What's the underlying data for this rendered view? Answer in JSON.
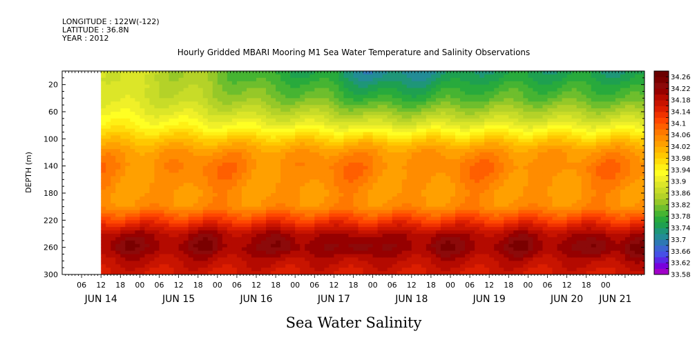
{
  "header": {
    "longitude": "LONGITUDE : 122W(-122)",
    "latitude": "LATITUDE : 36.8N",
    "year": "YEAR : 2012"
  },
  "chart_data": {
    "type": "heatmap",
    "title": "Hourly Gridded MBARI Mooring M1 Sea Water Temperature and Salinity Observations",
    "variable_label": "Sea Water Salinity",
    "xlabel": "",
    "ylabel": "DEPTH (m)",
    "x_range_hours": [
      0,
      180
    ],
    "x_range_note": "hours from JUN 14 00 to JUN 21 12",
    "data_start_hour": 12,
    "ylim": [
      0,
      300
    ],
    "y_inverted": true,
    "y_ticks": [
      20,
      60,
      100,
      140,
      180,
      220,
      260,
      300
    ],
    "x_hour_ticks": [
      {
        "h": 6,
        "label": "06"
      },
      {
        "h": 12,
        "label": "12"
      },
      {
        "h": 18,
        "label": "18"
      },
      {
        "h": 24,
        "label": "00"
      },
      {
        "h": 30,
        "label": "06"
      },
      {
        "h": 36,
        "label": "12"
      },
      {
        "h": 42,
        "label": "18"
      },
      {
        "h": 48,
        "label": "00"
      },
      {
        "h": 54,
        "label": "06"
      },
      {
        "h": 60,
        "label": "12"
      },
      {
        "h": 66,
        "label": "18"
      },
      {
        "h": 72,
        "label": "00"
      },
      {
        "h": 78,
        "label": "06"
      },
      {
        "h": 84,
        "label": "12"
      },
      {
        "h": 90,
        "label": "18"
      },
      {
        "h": 96,
        "label": "00"
      },
      {
        "h": 102,
        "label": "06"
      },
      {
        "h": 108,
        "label": "12"
      },
      {
        "h": 114,
        "label": "18"
      },
      {
        "h": 120,
        "label": "00"
      },
      {
        "h": 126,
        "label": "06"
      },
      {
        "h": 132,
        "label": "12"
      },
      {
        "h": 138,
        "label": "18"
      },
      {
        "h": 144,
        "label": "00"
      },
      {
        "h": 150,
        "label": "06"
      },
      {
        "h": 156,
        "label": "12"
      },
      {
        "h": 162,
        "label": "18"
      },
      {
        "h": 168,
        "label": "00"
      }
    ],
    "x_day_labels": [
      {
        "h": 12,
        "label": "JUN 14"
      },
      {
        "h": 36,
        "label": "JUN 15"
      },
      {
        "h": 60,
        "label": "JUN 16"
      },
      {
        "h": 84,
        "label": "JUN 17"
      },
      {
        "h": 108,
        "label": "JUN 18"
      },
      {
        "h": 132,
        "label": "JUN 19"
      },
      {
        "h": 156,
        "label": "JUN 20"
      },
      {
        "h": 171,
        "label": "JUN 21"
      }
    ],
    "colorbar": {
      "min": 33.58,
      "max": 34.28,
      "step": 0.02,
      "tick_labels": [
        "34.26",
        "34.22",
        "34.18",
        "34.14",
        "34.1",
        "34.06",
        "34.02",
        "33.98",
        "33.94",
        "33.9",
        "33.86",
        "33.82",
        "33.78",
        "33.74",
        "33.7",
        "33.66",
        "33.62",
        "33.58"
      ],
      "colors": [
        "#a000c8",
        "#7800dc",
        "#5a28e6",
        "#4650e6",
        "#3c64d2",
        "#2d78b4",
        "#238c96",
        "#1e9678",
        "#1ea050",
        "#28aa3c",
        "#46b432",
        "#6ebe2d",
        "#96c828",
        "#b4d228",
        "#c8dc28",
        "#dce628",
        "#f0f028",
        "#ffff23",
        "#fff014",
        "#ffdc0a",
        "#ffc800",
        "#ffb400",
        "#ffa000",
        "#ff8c00",
        "#ff7800",
        "#ff5f00",
        "#ff4600",
        "#f03200",
        "#dc1e00",
        "#c81400",
        "#b40a00",
        "#960000",
        "#8c0a0a",
        "#7a0000",
        "#6a0000"
      ]
    },
    "profile": [
      {
        "depth": 10,
        "salinity": 33.84
      },
      {
        "depth": 20,
        "salinity": 33.85
      },
      {
        "depth": 40,
        "salinity": 33.86
      },
      {
        "depth": 60,
        "salinity": 33.89
      },
      {
        "depth": 80,
        "salinity": 33.93
      },
      {
        "depth": 100,
        "salinity": 33.99
      },
      {
        "depth": 120,
        "salinity": 34.04
      },
      {
        "depth": 140,
        "salinity": 34.06
      },
      {
        "depth": 160,
        "salinity": 34.05
      },
      {
        "depth": 180,
        "salinity": 34.04
      },
      {
        "depth": 200,
        "salinity": 34.05
      },
      {
        "depth": 220,
        "salinity": 34.12
      },
      {
        "depth": 240,
        "salinity": 34.19
      },
      {
        "depth": 260,
        "salinity": 34.21
      },
      {
        "depth": 280,
        "salinity": 34.18
      },
      {
        "depth": 300,
        "salinity": 34.16
      }
    ],
    "surface_trend": [
      {
        "hour": 12,
        "delta": 0.06
      },
      {
        "hour": 40,
        "delta": 0.0
      },
      {
        "hour": 60,
        "delta": -0.06
      },
      {
        "hour": 84,
        "delta": -0.09
      },
      {
        "hour": 96,
        "delta": -0.14
      },
      {
        "hour": 108,
        "delta": -0.13
      },
      {
        "hour": 132,
        "delta": -0.09
      },
      {
        "hour": 156,
        "delta": -0.09
      },
      {
        "hour": 180,
        "delta": -0.1
      }
    ],
    "salinity_maxima": [
      {
        "hour": 20,
        "depth": 255
      },
      {
        "hour": 44,
        "depth": 255
      },
      {
        "hour": 68,
        "depth": 255
      },
      {
        "hour": 92,
        "depth": 258
      },
      {
        "hour": 118,
        "depth": 258
      },
      {
        "hour": 142,
        "depth": 258
      },
      {
        "hour": 166,
        "depth": 260
      },
      {
        "hour": 178,
        "depth": 262
      }
    ]
  }
}
